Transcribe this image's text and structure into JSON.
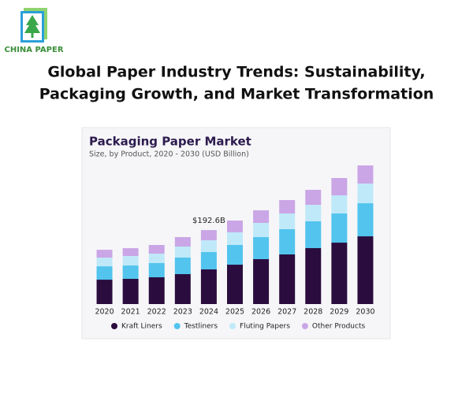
{
  "header": {
    "brand": "CHINA PAPER",
    "headline": [
      "Global Paper Industry Trends: Sustainability,",
      "Packaging Growth, and Market Transformation"
    ]
  },
  "chart_data": {
    "type": "stacked_bar",
    "title": "Packaging Paper Market",
    "subtitle": "Size, by Product, 2020 - 2030 (USD Billion)",
    "categories": [
      "2020",
      "2021",
      "2022",
      "2023",
      "2024",
      "2025",
      "2026",
      "2027",
      "2028",
      "2029",
      "2030"
    ],
    "series": [
      {
        "name": "Kraft Liners",
        "color": "#2a0d3e",
        "values": [
          63.5,
          65.6,
          69.7,
          77.9,
          90.2,
          102.5,
          116.9,
          129.2,
          145.6,
          159.9,
          176.3
        ]
      },
      {
        "name": "Testliners",
        "color": "#52c4ee",
        "values": [
          34.8,
          34.8,
          36.9,
          43.1,
          45.1,
          51.3,
          57.4,
          65.6,
          69.7,
          75.9,
          86.1
        ]
      },
      {
        "name": "Fluting Papers",
        "color": "#bfe9f9",
        "values": [
          22.5,
          24.6,
          24.6,
          28.7,
          30.7,
          32.8,
          36.9,
          41.0,
          43.1,
          47.2,
          51.3
        ]
      },
      {
        "name": "Other Products",
        "color": "#caa6e6",
        "values": [
          20.5,
          20.5,
          22.6,
          24.6,
          26.6,
          30.8,
          32.8,
          34.9,
          39.0,
          45.1,
          47.2
        ]
      }
    ],
    "annotations": [
      {
        "text": "$192.6B",
        "x": "2024"
      }
    ]
  }
}
